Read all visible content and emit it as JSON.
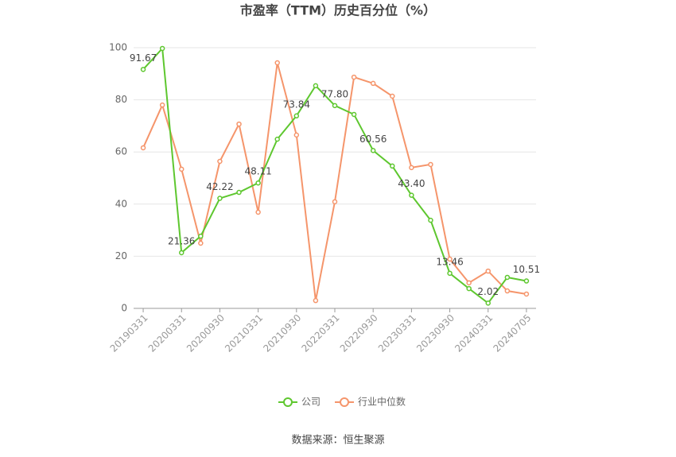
{
  "chart_data": {
    "type": "line",
    "title": "市盈率（TTM）历史百分位（%）",
    "categories": [
      "20190331",
      null,
      "20200331",
      null,
      "20200930",
      null,
      "20210331",
      null,
      "20210930",
      null,
      "20220331",
      null,
      "20220930",
      null,
      "20230331",
      null,
      "20230930",
      null,
      "20240331",
      null,
      "20240705"
    ],
    "series": [
      {
        "name": "公司",
        "color": "#5ec72f",
        "values": [
          91.67,
          99.7,
          21.36,
          27.7,
          42.22,
          44.5,
          48.11,
          64.9,
          73.84,
          85.4,
          77.8,
          74.4,
          60.56,
          54.6,
          43.4,
          33.8,
          13.46,
          7.6,
          2.02,
          11.9,
          10.51
        ],
        "value_labels": [
          "91.67",
          null,
          "21.36",
          null,
          "42.22",
          null,
          "48.11",
          null,
          "73.84",
          null,
          "77.80",
          null,
          "60.56",
          null,
          "43.40",
          null,
          "13.46",
          null,
          "2.02",
          null,
          "10.51"
        ]
      },
      {
        "name": "行业中位数",
        "color": "#f5956b",
        "values": [
          61.6,
          78,
          53.4,
          25,
          56.4,
          70.7,
          36.9,
          94.2,
          66.5,
          3,
          40.9,
          88.7,
          86.3,
          81.4,
          54,
          55.2,
          18.9,
          9.8,
          14.3,
          6.7,
          5.5
        ]
      }
    ],
    "ylim": [
      0,
      100
    ],
    "yticks": [
      0,
      20,
      40,
      60,
      80,
      100
    ],
    "grid": true,
    "source": "数据来源：恒生聚源"
  }
}
